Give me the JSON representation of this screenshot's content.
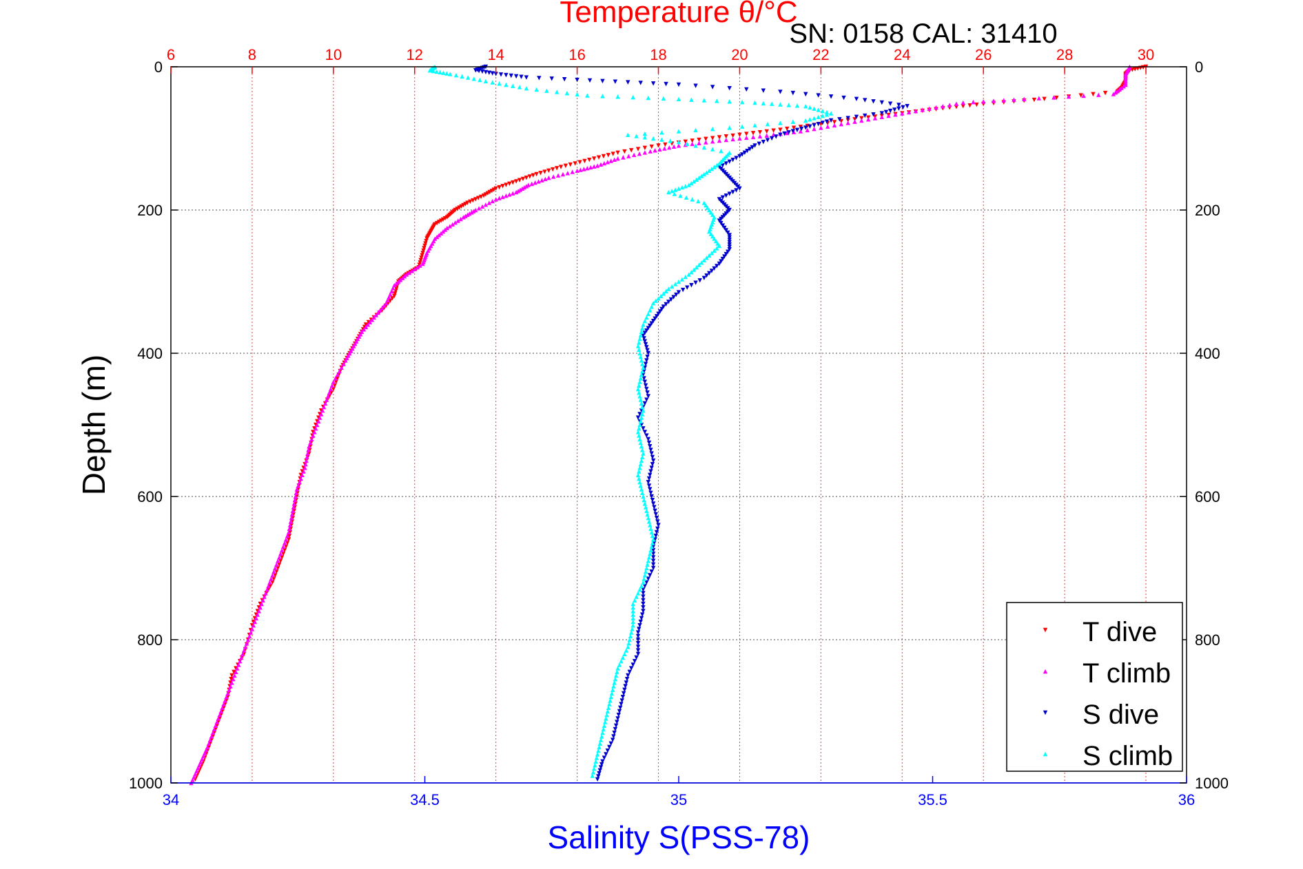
{
  "chart_data": {
    "type": "scatter",
    "title": "Temperature θ/°C",
    "subtitle": "SN: 0158  CAL: 31410",
    "ylabel": "Depth (m)",
    "xlabel_bottom": "Salinity S(PSS-78)",
    "xlabel_top": "Temperature θ/°C",
    "ylim": [
      0,
      1000
    ],
    "y_inverted": true,
    "xlim_temperature": [
      6,
      31
    ],
    "xlim_salinity": [
      34,
      36
    ],
    "y_ticks": [
      0,
      200,
      400,
      600,
      800,
      1000
    ],
    "x_ticks_temperature": [
      6,
      8,
      10,
      12,
      14,
      16,
      18,
      20,
      22,
      24,
      26,
      28,
      30
    ],
    "x_ticks_salinity": [
      34,
      34.5,
      35,
      35.5,
      36
    ],
    "x_tick_labels_salinity": [
      "34",
      "34.5",
      "35",
      "35.5",
      "36"
    ],
    "grid": true,
    "legend_placement": "bottom-right",
    "colors": {
      "temperature_axis": "#ff0000",
      "salinity_axis": "#0000ff",
      "t_dive": "#ff0000",
      "t_climb": "#ff00ff",
      "s_dive": "#0000cc",
      "s_climb": "#00ffff"
    },
    "series": [
      {
        "name": "T dive",
        "axis": "temperature",
        "marker": "triangle-down",
        "color": "#ff0000",
        "points": [
          [
            30.0,
            0
          ],
          [
            29.6,
            5
          ],
          [
            29.5,
            10
          ],
          [
            29.5,
            20
          ],
          [
            29.4,
            30
          ],
          [
            29.3,
            35
          ],
          [
            27.5,
            45
          ],
          [
            26.0,
            52
          ],
          [
            25.0,
            58
          ],
          [
            24.0,
            65
          ],
          [
            23.0,
            72
          ],
          [
            22.0,
            80
          ],
          [
            21.0,
            88
          ],
          [
            20.0,
            95
          ],
          [
            19.0,
            102
          ],
          [
            18.0,
            110
          ],
          [
            17.0,
            120
          ],
          [
            16.3,
            130
          ],
          [
            15.6,
            140
          ],
          [
            15.0,
            150
          ],
          [
            14.5,
            160
          ],
          [
            14.0,
            170
          ],
          [
            13.7,
            180
          ],
          [
            13.3,
            190
          ],
          [
            13.0,
            200
          ],
          [
            12.8,
            210
          ],
          [
            12.5,
            220
          ],
          [
            12.4,
            230
          ],
          [
            12.3,
            240
          ],
          [
            12.2,
            260
          ],
          [
            12.1,
            280
          ],
          [
            11.8,
            290
          ],
          [
            11.6,
            300
          ],
          [
            11.5,
            320
          ],
          [
            11.2,
            340
          ],
          [
            10.8,
            360
          ],
          [
            10.6,
            380
          ],
          [
            10.4,
            400
          ],
          [
            10.2,
            420
          ],
          [
            10.0,
            450
          ],
          [
            9.7,
            480
          ],
          [
            9.5,
            510
          ],
          [
            9.4,
            540
          ],
          [
            9.2,
            570
          ],
          [
            9.1,
            600
          ],
          [
            9.0,
            630
          ],
          [
            8.9,
            660
          ],
          [
            8.7,
            690
          ],
          [
            8.5,
            720
          ],
          [
            8.2,
            750
          ],
          [
            8.0,
            780
          ],
          [
            7.8,
            820
          ],
          [
            7.5,
            850
          ],
          [
            7.4,
            880
          ],
          [
            7.2,
            910
          ],
          [
            7.0,
            940
          ],
          [
            6.8,
            970
          ],
          [
            6.6,
            995
          ]
        ]
      },
      {
        "name": "T climb",
        "axis": "temperature",
        "marker": "triangle-up",
        "color": "#ff00ff",
        "points": [
          [
            29.6,
            0
          ],
          [
            29.5,
            10
          ],
          [
            29.5,
            25
          ],
          [
            29.2,
            38
          ],
          [
            27.0,
            45
          ],
          [
            25.5,
            50
          ],
          [
            24.5,
            60
          ],
          [
            23.5,
            70
          ],
          [
            22.5,
            80
          ],
          [
            21.5,
            90
          ],
          [
            20.5,
            97
          ],
          [
            19.5,
            103
          ],
          [
            18.5,
            110
          ],
          [
            17.8,
            118
          ],
          [
            17.0,
            128
          ],
          [
            16.5,
            138
          ],
          [
            16.0,
            145
          ],
          [
            15.3,
            155
          ],
          [
            14.8,
            165
          ],
          [
            14.5,
            175
          ],
          [
            14.0,
            185
          ],
          [
            13.5,
            200
          ],
          [
            13.2,
            210
          ],
          [
            12.8,
            225
          ],
          [
            12.5,
            240
          ],
          [
            12.3,
            260
          ],
          [
            12.2,
            275
          ],
          [
            11.8,
            290
          ],
          [
            11.5,
            305
          ],
          [
            11.3,
            330
          ],
          [
            11.0,
            350
          ],
          [
            10.7,
            370
          ],
          [
            10.5,
            390
          ],
          [
            10.3,
            410
          ],
          [
            10.0,
            440
          ],
          [
            9.8,
            470
          ],
          [
            9.6,
            500
          ],
          [
            9.4,
            530
          ],
          [
            9.3,
            560
          ],
          [
            9.1,
            590
          ],
          [
            9.0,
            620
          ],
          [
            8.9,
            650
          ],
          [
            8.7,
            680
          ],
          [
            8.5,
            710
          ],
          [
            8.3,
            740
          ],
          [
            8.1,
            770
          ],
          [
            7.9,
            800
          ],
          [
            7.7,
            830
          ],
          [
            7.5,
            860
          ],
          [
            7.3,
            890
          ],
          [
            7.1,
            920
          ],
          [
            6.9,
            950
          ],
          [
            6.7,
            975
          ],
          [
            6.5,
            1000
          ]
        ]
      },
      {
        "name": "S dive",
        "axis": "salinity",
        "marker": "triangle-down",
        "color": "#0000cc",
        "points": [
          [
            34.62,
            0
          ],
          [
            34.6,
            5
          ],
          [
            34.64,
            10
          ],
          [
            34.7,
            15
          ],
          [
            34.85,
            20
          ],
          [
            35.0,
            25
          ],
          [
            35.2,
            35
          ],
          [
            35.35,
            45
          ],
          [
            35.45,
            55
          ],
          [
            35.4,
            65
          ],
          [
            35.3,
            75
          ],
          [
            35.25,
            85
          ],
          [
            35.2,
            95
          ],
          [
            35.15,
            110
          ],
          [
            35.12,
            125
          ],
          [
            35.08,
            140
          ],
          [
            35.1,
            155
          ],
          [
            35.12,
            170
          ],
          [
            35.08,
            185
          ],
          [
            35.1,
            200
          ],
          [
            35.08,
            215
          ],
          [
            35.1,
            235
          ],
          [
            35.1,
            255
          ],
          [
            35.08,
            275
          ],
          [
            35.05,
            295
          ],
          [
            35.0,
            315
          ],
          [
            34.97,
            335
          ],
          [
            34.95,
            355
          ],
          [
            34.93,
            375
          ],
          [
            34.94,
            400
          ],
          [
            34.93,
            430
          ],
          [
            34.94,
            460
          ],
          [
            34.92,
            490
          ],
          [
            34.94,
            520
          ],
          [
            34.95,
            550
          ],
          [
            34.94,
            580
          ],
          [
            34.95,
            610
          ],
          [
            34.96,
            640
          ],
          [
            34.95,
            670
          ],
          [
            34.95,
            700
          ],
          [
            34.93,
            730
          ],
          [
            34.93,
            760
          ],
          [
            34.92,
            790
          ],
          [
            34.92,
            820
          ],
          [
            34.9,
            850
          ],
          [
            34.89,
            880
          ],
          [
            34.88,
            910
          ],
          [
            34.87,
            940
          ],
          [
            34.85,
            970
          ],
          [
            34.84,
            995
          ]
        ]
      },
      {
        "name": "S climb",
        "axis": "salinity",
        "marker": "triangle-up",
        "color": "#00ffff",
        "points": [
          [
            34.52,
            0
          ],
          [
            34.51,
            5
          ],
          [
            34.55,
            10
          ],
          [
            34.62,
            20
          ],
          [
            34.7,
            30
          ],
          [
            34.82,
            40
          ],
          [
            35.0,
            45
          ],
          [
            35.15,
            50
          ],
          [
            35.25,
            55
          ],
          [
            35.3,
            65
          ],
          [
            35.25,
            75
          ],
          [
            35.1,
            85
          ],
          [
            34.9,
            95
          ],
          [
            35.0,
            105
          ],
          [
            35.1,
            120
          ],
          [
            35.08,
            135
          ],
          [
            35.05,
            150
          ],
          [
            35.02,
            165
          ],
          [
            34.98,
            175
          ],
          [
            35.05,
            190
          ],
          [
            35.07,
            210
          ],
          [
            35.06,
            230
          ],
          [
            35.08,
            250
          ],
          [
            35.05,
            270
          ],
          [
            35.02,
            290
          ],
          [
            34.98,
            310
          ],
          [
            34.95,
            330
          ],
          [
            34.93,
            360
          ],
          [
            34.92,
            390
          ],
          [
            34.93,
            420
          ],
          [
            34.92,
            450
          ],
          [
            34.93,
            480
          ],
          [
            34.92,
            510
          ],
          [
            34.93,
            540
          ],
          [
            34.92,
            570
          ],
          [
            34.93,
            600
          ],
          [
            34.94,
            630
          ],
          [
            34.95,
            660
          ],
          [
            34.94,
            690
          ],
          [
            34.93,
            720
          ],
          [
            34.91,
            750
          ],
          [
            34.91,
            780
          ],
          [
            34.9,
            810
          ],
          [
            34.88,
            840
          ],
          [
            34.87,
            870
          ],
          [
            34.86,
            900
          ],
          [
            34.85,
            930
          ],
          [
            34.84,
            960
          ],
          [
            34.83,
            990
          ]
        ]
      }
    ]
  }
}
